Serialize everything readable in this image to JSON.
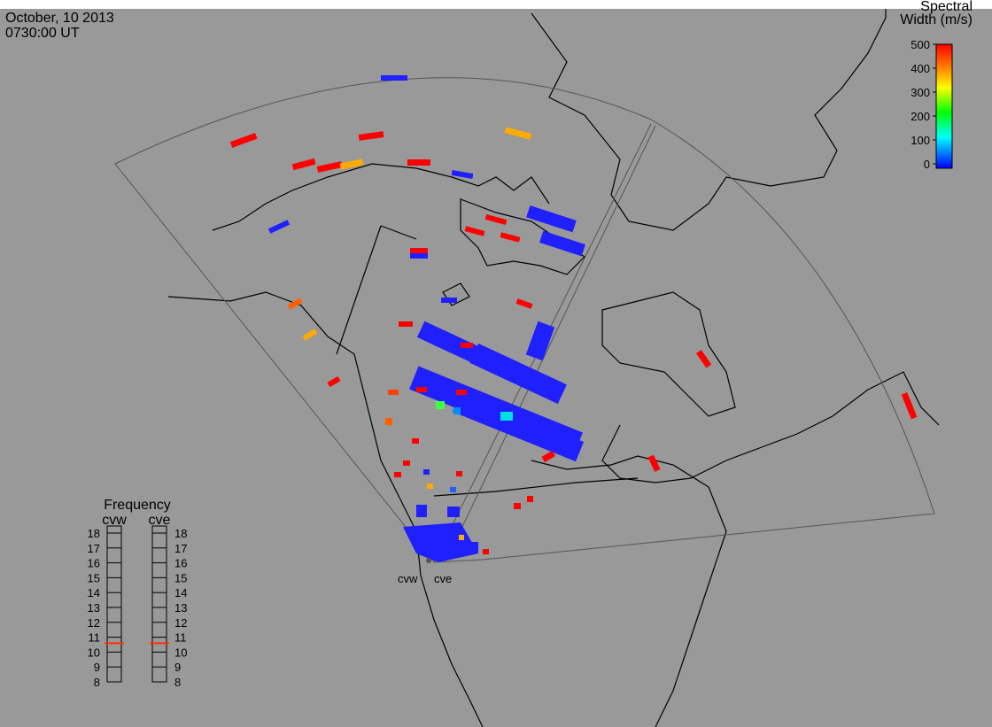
{
  "header": {
    "date": "October, 10 2013",
    "time": "0730:00 UT"
  },
  "colorbar": {
    "title": [
      "Spectral",
      "Width (m/s)"
    ],
    "lim": [
      0,
      500
    ],
    "ticks": [
      0,
      100,
      200,
      300,
      400,
      500
    ]
  },
  "frequency": {
    "title": "Frequency",
    "lim": [
      8,
      18
    ],
    "ticks": [
      8,
      9,
      10,
      11,
      12,
      13,
      14,
      15,
      16,
      17,
      18
    ],
    "radars": [
      {
        "name": "cvw",
        "value": 10.6
      },
      {
        "name": "cve",
        "value": 10.6
      }
    ]
  },
  "stations": [
    "cvw",
    "cve"
  ]
}
